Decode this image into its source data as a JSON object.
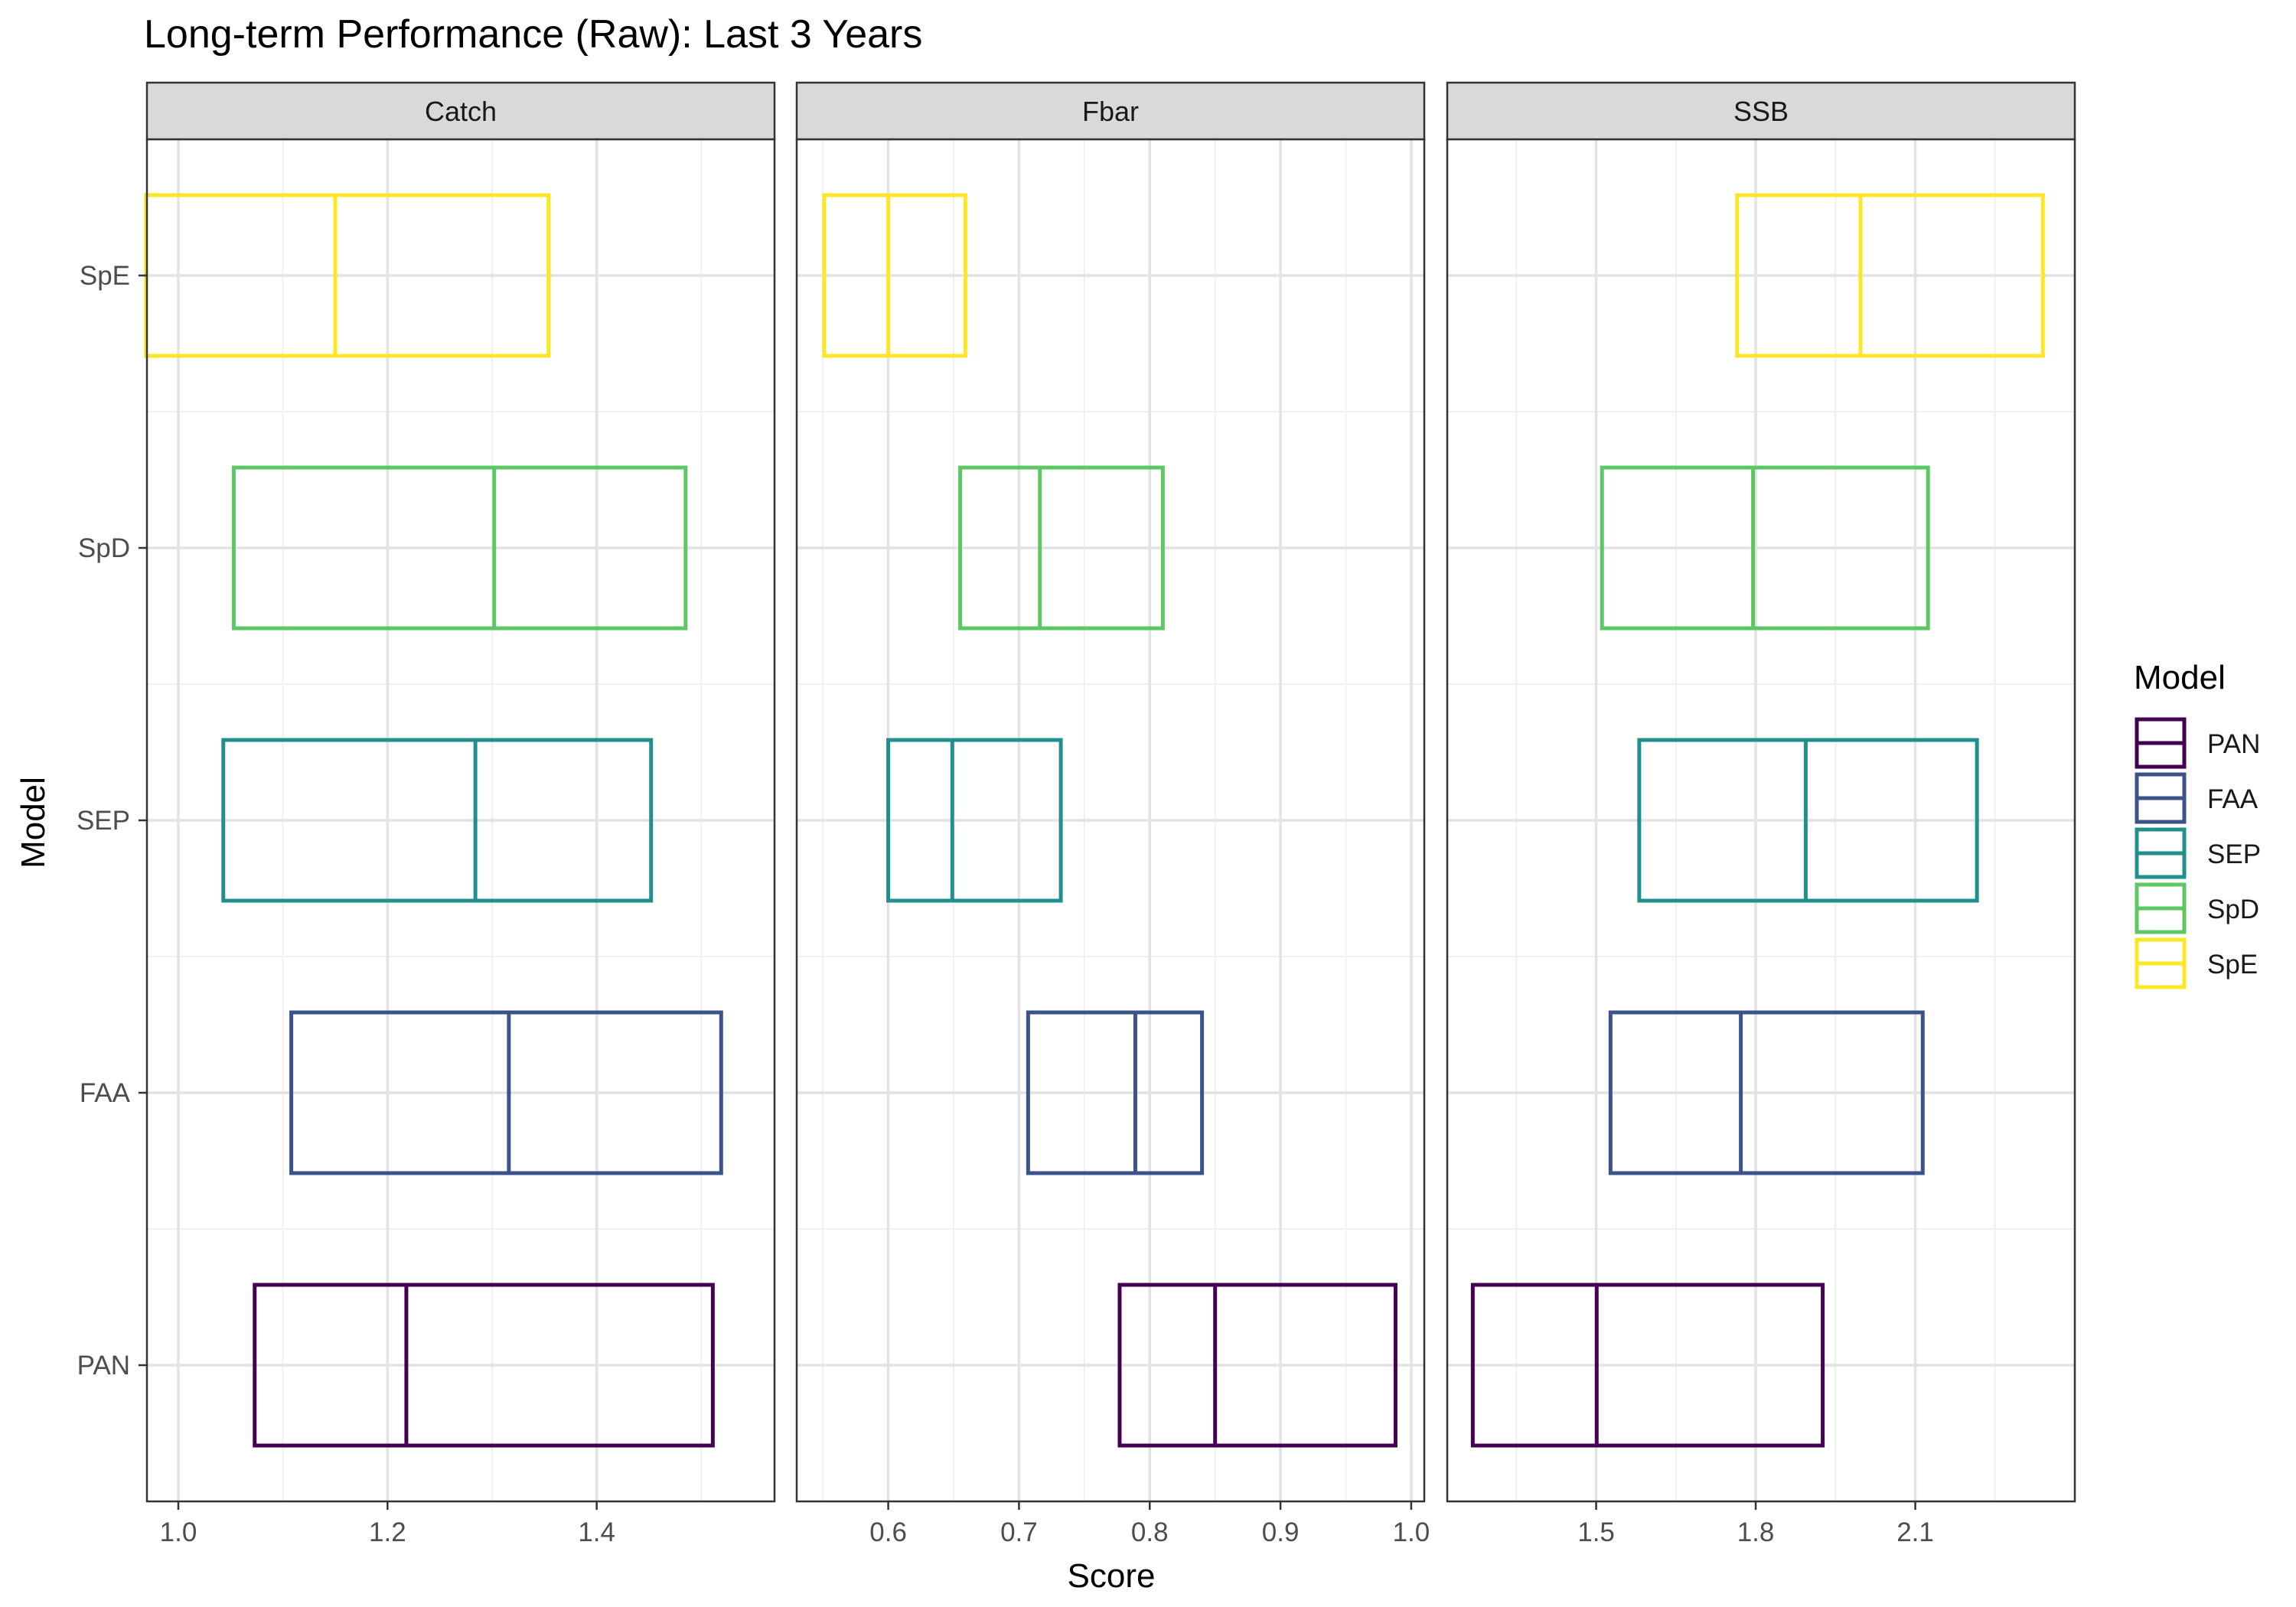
{
  "chart_data": {
    "type": "boxplot",
    "title": "Long-term Performance (Raw): Last 3 Years",
    "xlabel": "Score",
    "ylabel": "Model",
    "models": [
      "PAN",
      "FAA",
      "SEP",
      "SpD",
      "SpE"
    ],
    "legend": {
      "title": "Model",
      "position": "right",
      "entries": [
        "PAN",
        "FAA",
        "SEP",
        "SpD",
        "SpE"
      ]
    },
    "colors": {
      "PAN": "#440154",
      "FAA": "#3B528B",
      "SEP": "#21908C",
      "SpD": "#5DC863",
      "SpE": "#FDE725"
    },
    "grid": true,
    "panels": [
      {
        "name": "Catch",
        "xlim": [
          0.97,
          1.57
        ],
        "ticks": [
          1.0,
          1.2,
          1.4
        ],
        "tick_labels": [
          "1.0",
          "1.2",
          "1.4"
        ],
        "minor_ticks": [
          1.1,
          1.3,
          1.5
        ],
        "boxes": {
          "PAN": {
            "q1": 1.073,
            "median": 1.218,
            "q3": 1.511
          },
          "FAA": {
            "q1": 1.108,
            "median": 1.316,
            "q3": 1.519
          },
          "SEP": {
            "q1": 1.043,
            "median": 1.284,
            "q3": 1.452
          },
          "SpD": {
            "q1": 1.053,
            "median": 1.302,
            "q3": 1.485
          },
          "SpE": {
            "q1": 0.969,
            "median": 1.15,
            "q3": 1.354
          }
        }
      },
      {
        "name": "Fbar",
        "xlim": [
          0.53,
          1.01
        ],
        "ticks": [
          0.6,
          0.7,
          0.8,
          0.9,
          1.0
        ],
        "tick_labels": [
          "0.6",
          "0.7",
          "0.8",
          "0.9",
          "1.0"
        ],
        "minor_ticks": [
          0.55,
          0.65,
          0.75,
          0.85,
          0.95
        ],
        "boxes": {
          "PAN": {
            "q1": 0.777,
            "median": 0.85,
            "q3": 0.988
          },
          "FAA": {
            "q1": 0.707,
            "median": 0.789,
            "q3": 0.84
          },
          "SEP": {
            "q1": 0.6,
            "median": 0.649,
            "q3": 0.732
          },
          "SpD": {
            "q1": 0.655,
            "median": 0.716,
            "q3": 0.81
          },
          "SpE": {
            "q1": 0.551,
            "median": 0.6,
            "q3": 0.659
          }
        }
      },
      {
        "name": "SSB",
        "xlim": [
          1.22,
          2.4
        ],
        "ticks": [
          1.5,
          1.8,
          2.1
        ],
        "tick_labels": [
          "1.5",
          "1.8",
          "2.1"
        ],
        "minor_ticks": [
          1.35,
          1.65,
          1.95,
          2.25
        ],
        "boxes": {
          "PAN": {
            "q1": 1.268,
            "median": 1.501,
            "q3": 1.926
          },
          "FAA": {
            "q1": 1.527,
            "median": 1.772,
            "q3": 2.114
          },
          "SEP": {
            "q1": 1.581,
            "median": 1.894,
            "q3": 2.216
          },
          "SpD": {
            "q1": 1.511,
            "median": 1.795,
            "q3": 2.124
          },
          "SpE": {
            "q1": 1.765,
            "median": 1.997,
            "q3": 2.34
          }
        }
      }
    ]
  }
}
